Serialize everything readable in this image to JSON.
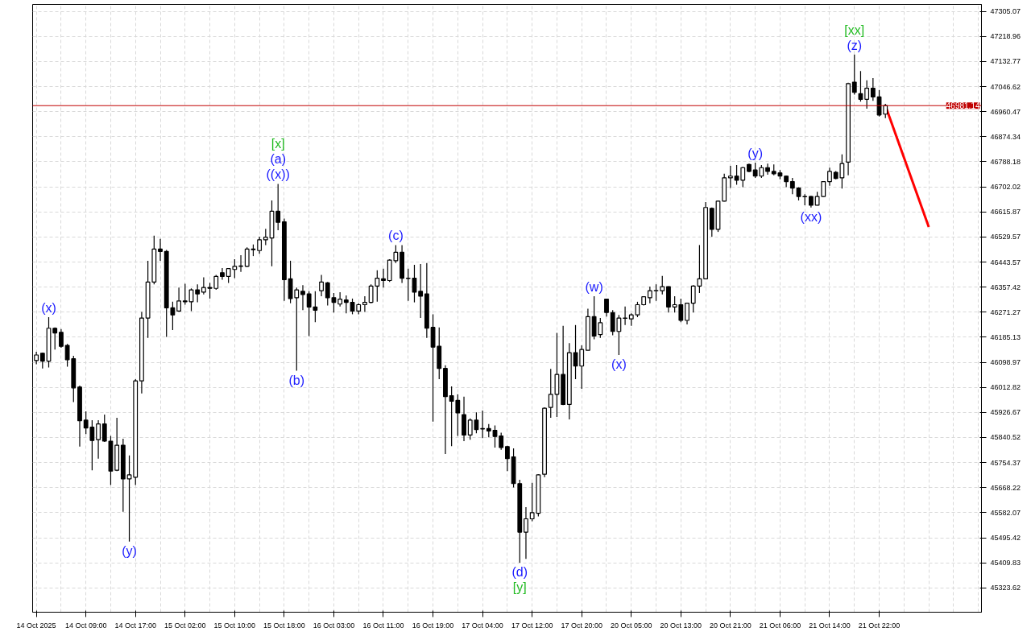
{
  "chart_data": {
    "type": "candlestick",
    "categories": [
      "14 Oct 2025",
      null,
      null,
      null,
      null,
      null,
      null,
      null,
      "14 Oct 09:00",
      null,
      null,
      null,
      null,
      null,
      null,
      null,
      "14 Oct 17:00",
      null,
      null,
      null,
      null,
      null,
      null,
      null,
      "15 Oct 02:00",
      null,
      null,
      null,
      null,
      null,
      null,
      null,
      "15 Oct 10:00",
      null,
      null,
      null,
      null,
      null,
      null,
      null,
      "15 Oct 18:00",
      null,
      null,
      null,
      null,
      null,
      null,
      null,
      "16 Oct 03:00",
      null,
      null,
      null,
      null,
      null,
      null,
      null,
      "16 Oct 11:00",
      null,
      null,
      null,
      null,
      null,
      null,
      null,
      "16 Oct 19:00",
      null,
      null,
      null,
      null,
      null,
      null,
      null,
      "17 Oct 04:00",
      null,
      null,
      null,
      null,
      null,
      null,
      null,
      "17 Oct 12:00",
      null,
      null,
      null,
      null,
      null,
      null,
      null,
      "17 Oct 20:00",
      null,
      null,
      null,
      null,
      null,
      null,
      null,
      "20 Oct 05:00",
      null,
      null,
      null,
      null,
      null,
      null,
      null,
      "20 Oct 13:00",
      null,
      null,
      null,
      null,
      null,
      null,
      null,
      "20 Oct 21:00",
      null,
      null,
      null,
      null,
      null,
      null,
      null,
      "21 Oct 06:00",
      null,
      null,
      null,
      null,
      null,
      null,
      null,
      "21 Oct 14:00",
      null,
      null,
      null,
      null,
      null,
      null,
      null,
      "21 Oct 22:00",
      null,
      null,
      null,
      null,
      null,
      null,
      null,
      null,
      null,
      null,
      null,
      null,
      null,
      null,
      null,
      null
    ],
    "ohlc": [
      [
        46105,
        46135,
        46092,
        46124
      ],
      [
        46130,
        46132,
        46078,
        46103
      ],
      [
        46103,
        46254,
        46081,
        46216
      ],
      [
        46216,
        46219,
        46143,
        46200
      ],
      [
        46202,
        46213,
        46149,
        46154
      ],
      [
        46157,
        46162,
        46084,
        46108
      ],
      [
        46111,
        46121,
        45962,
        46011
      ],
      [
        46014,
        46019,
        45809,
        45898
      ],
      [
        45900,
        45930,
        45852,
        45873
      ],
      [
        45876,
        45900,
        45728,
        45830
      ],
      [
        45833,
        45900,
        45768,
        45887
      ],
      [
        45887,
        45919,
        45825,
        45828
      ],
      [
        45828,
        45846,
        45677,
        45725
      ],
      [
        45728,
        45908,
        45725,
        45814
      ],
      [
        45814,
        45836,
        45585,
        45698
      ],
      [
        45698,
        45779,
        45483,
        45712
      ],
      [
        45704,
        46041,
        45677,
        46035
      ],
      [
        46035,
        46272,
        45992,
        46251
      ],
      [
        46251,
        46448,
        46183,
        46375
      ],
      [
        46375,
        46534,
        46367,
        46488
      ],
      [
        46488,
        46523,
        46448,
        46480
      ],
      [
        46480,
        46485,
        46186,
        46286
      ],
      [
        46286,
        46307,
        46210,
        46262
      ],
      [
        46275,
        46356,
        46272,
        46310
      ],
      [
        46310,
        46369,
        46297,
        46307
      ],
      [
        46307,
        46353,
        46275,
        46348
      ],
      [
        46348,
        46367,
        46305,
        46334
      ],
      [
        46340,
        46391,
        46332,
        46356
      ],
      [
        46356,
        46372,
        46318,
        46353
      ],
      [
        46353,
        46399,
        46348,
        46394
      ],
      [
        46407,
        46423,
        46383,
        46394
      ],
      [
        46394,
        46423,
        46372,
        46421
      ],
      [
        46418,
        46453,
        46388,
        46429
      ],
      [
        46429,
        46467,
        46410,
        46430
      ],
      [
        46429,
        46494,
        46426,
        46488
      ],
      [
        46488,
        46504,
        46464,
        46486
      ],
      [
        46483,
        46531,
        46472,
        46520
      ],
      [
        46520,
        46558,
        46502,
        46529
      ],
      [
        46526,
        46655,
        46429,
        46618
      ],
      [
        46618,
        46712,
        46553,
        46580
      ],
      [
        46582,
        46593,
        46310,
        46383
      ],
      [
        46386,
        46448,
        46302,
        46318
      ],
      [
        46321,
        46356,
        46070,
        46348
      ],
      [
        46343,
        46364,
        46278,
        46332
      ],
      [
        46334,
        46343,
        46189,
        46289
      ],
      [
        46289,
        46343,
        46237,
        46278
      ],
      [
        46345,
        46399,
        46326,
        46375
      ],
      [
        46372,
        46375,
        46294,
        46321
      ],
      [
        46321,
        46337,
        46270,
        46305
      ],
      [
        46299,
        46340,
        46291,
        46316
      ],
      [
        46313,
        46329,
        46267,
        46305
      ],
      [
        46305,
        46318,
        46264,
        46275
      ],
      [
        46275,
        46302,
        46264,
        46297
      ],
      [
        46297,
        46326,
        46272,
        46305
      ],
      [
        46305,
        46367,
        46302,
        46361
      ],
      [
        46361,
        46415,
        46307,
        46388
      ],
      [
        46386,
        46421,
        46356,
        46380
      ],
      [
        46380,
        46453,
        46375,
        46450
      ],
      [
        46448,
        46502,
        46440,
        46477
      ],
      [
        46477,
        46502,
        46372,
        46388
      ],
      [
        46388,
        46421,
        46310,
        46387
      ],
      [
        46388,
        46434,
        46305,
        46340
      ],
      [
        46343,
        46437,
        46251,
        46326
      ],
      [
        46334,
        46440,
        46183,
        46216
      ],
      [
        46219,
        46264,
        45895,
        46151
      ],
      [
        46154,
        46219,
        46041,
        46078
      ],
      [
        46078,
        46089,
        45784,
        45981
      ],
      [
        45984,
        46016,
        45811,
        45965
      ],
      [
        45968,
        45989,
        45846,
        45925
      ],
      [
        45919,
        45981,
        45828,
        45849
      ],
      [
        45849,
        45906,
        45833,
        45900
      ],
      [
        45900,
        45927,
        45855,
        45868
      ],
      [
        45871,
        45933,
        45838,
        45870
      ],
      [
        45871,
        45887,
        45841,
        45863
      ],
      [
        45865,
        45882,
        45806,
        45844
      ],
      [
        45846,
        45857,
        45798,
        45806
      ],
      [
        45809,
        45812,
        45725,
        45768
      ],
      [
        45774,
        45803,
        45669,
        45682
      ],
      [
        45682,
        45695,
        45410,
        45515
      ],
      [
        45515,
        45601,
        45423,
        45561
      ],
      [
        45561,
        45685,
        45553,
        45582
      ],
      [
        45580,
        45714,
        45569,
        45712
      ],
      [
        45714,
        45944,
        45704,
        45941
      ],
      [
        45944,
        46076,
        45908,
        45989
      ],
      [
        45989,
        46200,
        45911,
        46057
      ],
      [
        46057,
        46224,
        45952,
        45954
      ],
      [
        45954,
        46165,
        45903,
        46132
      ],
      [
        46132,
        46227,
        46041,
        46086
      ],
      [
        46086,
        46157,
        46008,
        46143
      ],
      [
        46140,
        46283,
        46140,
        46256
      ],
      [
        46256,
        46326,
        46178,
        46189
      ],
      [
        46194,
        46251,
        46183,
        46235
      ],
      [
        46316,
        46318,
        46256,
        46270
      ],
      [
        46270,
        46278,
        46192,
        46205
      ],
      [
        46205,
        46262,
        46124,
        46251
      ],
      [
        46251,
        46291,
        46227,
        46250
      ],
      [
        46248,
        46267,
        46224,
        46262
      ],
      [
        46262,
        46307,
        46254,
        46297
      ],
      [
        46297,
        46326,
        46294,
        46324
      ],
      [
        46321,
        46359,
        46302,
        46345
      ],
      [
        46345,
        46367,
        46310,
        46346
      ],
      [
        46345,
        46396,
        46332,
        46359
      ],
      [
        46359,
        46360,
        46270,
        46289
      ],
      [
        46289,
        46326,
        46270,
        46297
      ],
      [
        46297,
        46318,
        46237,
        46243
      ],
      [
        46243,
        46303,
        46229,
        46302
      ],
      [
        46302,
        46364,
        46270,
        46361
      ],
      [
        46361,
        46502,
        46337,
        46386
      ],
      [
        46386,
        46650,
        46385,
        46631
      ],
      [
        46628,
        46631,
        46531,
        46556
      ],
      [
        46556,
        46655,
        46547,
        46653
      ],
      [
        46653,
        46747,
        46652,
        46733
      ],
      [
        46733,
        46774,
        46698,
        46739
      ],
      [
        46739,
        46777,
        46709,
        46725
      ],
      [
        46725,
        46771,
        46701,
        46768
      ],
      [
        46779,
        46782,
        46752,
        46755
      ],
      [
        46760,
        46785,
        46733,
        46739
      ],
      [
        46739,
        46777,
        46733,
        46768
      ],
      [
        46768,
        46782,
        46744,
        46755
      ],
      [
        46755,
        46779,
        46742,
        46747
      ],
      [
        46750,
        46760,
        46728,
        46739
      ],
      [
        46739,
        46740,
        46701,
        46720
      ],
      [
        46720,
        46733,
        46677,
        46698
      ],
      [
        46698,
        46701,
        46655,
        46669
      ],
      [
        46669,
        46677,
        46639,
        46668
      ],
      [
        46669,
        46671,
        46631,
        46639
      ],
      [
        46639,
        46685,
        46638,
        46669
      ],
      [
        46669,
        46721,
        46668,
        46720
      ],
      [
        46720,
        46768,
        46706,
        46755
      ],
      [
        46752,
        46756,
        46728,
        46731
      ],
      [
        46733,
        46814,
        46696,
        46782
      ],
      [
        46787,
        47060,
        46742,
        47057
      ],
      [
        47062,
        47157,
        47019,
        47027
      ],
      [
        47022,
        47100,
        46995,
        47003
      ],
      [
        47003,
        47068,
        46971,
        47041
      ],
      [
        47041,
        47076,
        46998,
        47011
      ],
      [
        47011,
        47035,
        46944,
        46949
      ],
      [
        46952,
        46987,
        46938,
        46981.14
      ],
      null,
      null,
      null,
      null,
      null,
      null,
      null,
      null,
      null,
      null,
      null,
      null,
      null,
      null,
      null
    ],
    "series": [
      {
        "type": "line",
        "color": "#ff0000",
        "values": [
          null,
          null,
          null,
          null,
          null,
          null,
          null,
          null,
          null,
          null,
          null,
          null,
          null,
          null,
          null,
          null,
          null,
          null,
          null,
          null,
          null,
          null,
          null,
          null,
          null,
          null,
          null,
          null,
          null,
          null,
          null,
          null,
          null,
          null,
          null,
          null,
          null,
          null,
          null,
          null,
          null,
          null,
          null,
          null,
          null,
          null,
          null,
          null,
          null,
          null,
          null,
          null,
          null,
          null,
          null,
          null,
          null,
          null,
          null,
          null,
          null,
          null,
          null,
          null,
          null,
          null,
          null,
          null,
          null,
          null,
          null,
          null,
          null,
          null,
          null,
          null,
          null,
          null,
          null,
          null,
          null,
          null,
          null,
          null,
          null,
          null,
          null,
          null,
          null,
          null,
          null,
          null,
          null,
          null,
          null,
          null,
          null,
          null,
          null,
          null,
          null,
          null,
          null,
          null,
          null,
          null,
          null,
          null,
          null,
          null,
          null,
          null,
          null,
          null,
          null,
          null,
          null,
          null,
          null,
          null,
          null,
          null,
          null,
          null,
          null,
          null,
          null,
          null,
          null,
          null,
          null,
          null,
          null,
          null,
          null,
          null,
          null,
          46981,
          null,
          null,
          null,
          null,
          null,
          null,
          46564,
          null,
          null,
          null,
          null,
          null,
          null,
          null,
          null
        ]
      }
    ],
    "ylim": [
      45240,
      47329
    ],
    "yticks": [
      45323.62,
      45409.83,
      45495.42,
      45582.07,
      45668.22,
      45754.37,
      45840.52,
      45926.67,
      46012.82,
      46098.97,
      46185.13,
      46271.27,
      46357.42,
      46443.57,
      46529.57,
      46615.87,
      46702.02,
      46788.18,
      46874.34,
      46960.47,
      47046.62,
      47132.77,
      47218.96,
      47305.07
    ],
    "ref_lines": [
      {
        "axis": "y",
        "value": 46981.14,
        "label": "46981.14",
        "color": "#c00000"
      }
    ],
    "annotations": [
      {
        "text": "(x)",
        "y": 46254
      },
      {
        "text": "(y)",
        "y": 45483
      },
      {
        "text": "((x))",
        "y": 46712
      },
      {
        "text": "(a)",
        "y": 46712
      },
      {
        "text": "[x]",
        "y": 46712
      },
      {
        "text": "(b)",
        "y": 46070
      },
      {
        "text": "(c)",
        "y": 46502
      },
      {
        "text": "(d)",
        "y": 45410
      },
      {
        "text": "[y]",
        "y": 45410
      },
      {
        "text": "(w)",
        "y": 46326
      },
      {
        "text": "(x)",
        "y": 46124
      },
      {
        "text": "(y)",
        "y": 46785
      },
      {
        "text": "(xx)",
        "y": 46631
      },
      {
        "text": "(z)",
        "y": 47157
      },
      {
        "text": "[xx]",
        "y": 47157
      }
    ],
    "grid": true
  }
}
